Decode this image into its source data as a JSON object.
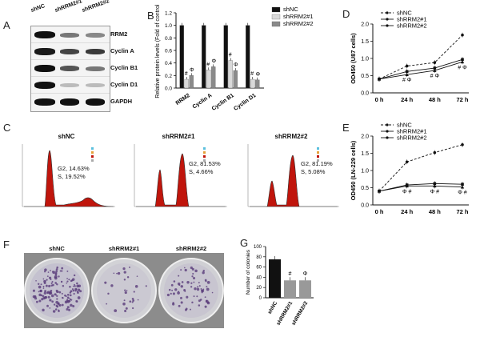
{
  "panels": {
    "a": "A",
    "b": "B",
    "c": "C",
    "d": "D",
    "e": "E",
    "f": "F",
    "g": "G"
  },
  "panel_a": {
    "columns": [
      "shNC",
      "shRRM2#1",
      "shRRM2#2"
    ],
    "rows": [
      "RRM2",
      "Cyclin A",
      "Cyclin B1",
      "Cyclin D1",
      "GAPDH"
    ]
  },
  "panel_c": {
    "titles": [
      "shNC",
      "shRRM2#1",
      "shRRM2#2"
    ],
    "g2_labels": [
      "G2, 14.63%",
      "G2, 81.53%",
      "G2, 81.19%"
    ],
    "s_labels": [
      "S, 19.52%",
      "S, 4.66%",
      "S, 5.08%"
    ]
  },
  "panel_f": {
    "labels": [
      "shNC",
      "shRRM2#1",
      "shRRM2#2"
    ]
  },
  "chart_data": [
    {
      "panel": "B",
      "type": "bar",
      "categories": [
        "RRM2",
        "Cyclin A",
        "Cyclin B1",
        "Cyclin D1"
      ],
      "ylabel": "Relative protein levels (Fold of control)",
      "ylim": [
        0,
        1.2
      ],
      "yticks": [
        0.0,
        0.2,
        0.4,
        0.6,
        0.8,
        1.0,
        1.2
      ],
      "yticklabels": [
        "0.0",
        "0.2",
        "0.4",
        "0.6",
        "0.8",
        "1.0",
        "1.2"
      ],
      "legend": "top-right",
      "series": [
        {
          "name": "shNC",
          "color": "#111111",
          "values": [
            1.0,
            1.0,
            1.0,
            1.0
          ]
        },
        {
          "name": "shRRM2#1",
          "color": "#d9d9d9",
          "values": [
            0.14,
            0.29,
            0.44,
            0.14
          ]
        },
        {
          "name": "shRRM2#2",
          "color": "#8a8a8a",
          "values": [
            0.2,
            0.34,
            0.28,
            0.13
          ]
        }
      ],
      "annotations": [
        "#",
        "Φ",
        "#",
        "Φ",
        "#",
        "Φ",
        "#",
        "Φ"
      ]
    },
    {
      "panel": "D",
      "type": "line",
      "x": [
        "0 h",
        "24 h",
        "48 h",
        "72 h"
      ],
      "ylabel": "OD450 (U87 cells)",
      "ylim": [
        0.0,
        2.0
      ],
      "yticks": [
        0.0,
        0.5,
        1.0,
        1.5,
        2.0
      ],
      "yticklabels": [
        "0.0",
        "0.5",
        "1.0",
        "1.5",
        "2.0"
      ],
      "legend": "top-left",
      "series": [
        {
          "name": "shNC",
          "values": [
            0.4,
            0.78,
            0.88,
            1.68
          ]
        },
        {
          "name": "shRRM2#1",
          "values": [
            0.4,
            0.62,
            0.72,
            0.97
          ]
        },
        {
          "name": "shRRM2#2",
          "values": [
            0.4,
            0.53,
            0.65,
            0.9
          ]
        }
      ],
      "annotations": [
        "# Φ",
        "# Φ",
        "# Φ"
      ]
    },
    {
      "panel": "E",
      "type": "line",
      "x": [
        "0 h",
        "24 h",
        "48 h",
        "72 h"
      ],
      "ylabel": "OD450 (LN-229 cells)",
      "ylim": [
        0.0,
        2.0
      ],
      "yticks": [
        0.0,
        0.5,
        1.0,
        1.5,
        2.0
      ],
      "yticklabels": [
        "0.0",
        "0.5",
        "1.0",
        "1.5",
        "2.0"
      ],
      "legend": "top-left",
      "series": [
        {
          "name": "shNC",
          "values": [
            0.4,
            1.25,
            1.52,
            1.75
          ]
        },
        {
          "name": "shRRM2#1",
          "values": [
            0.4,
            0.58,
            0.62,
            0.6
          ]
        },
        {
          "name": "shRRM2#2",
          "values": [
            0.4,
            0.55,
            0.55,
            0.52
          ]
        }
      ],
      "annotations": [
        "Φ #",
        "Φ #",
        "Φ #"
      ]
    },
    {
      "panel": "G",
      "type": "bar",
      "categories": [
        "shNC",
        "shRRM2#1",
        "shRRM2#2"
      ],
      "ylabel": "Number of colonies",
      "ylim": [
        0,
        100
      ],
      "yticks": [
        0,
        20,
        40,
        60,
        80,
        100
      ],
      "yticklabels": [
        "0",
        "20",
        "40",
        "60",
        "80",
        "100"
      ],
      "series": [
        {
          "colors": [
            "#111111",
            "#999999",
            "#999999"
          ],
          "values": [
            75,
            34,
            34
          ]
        }
      ],
      "annotations": [
        "#",
        "Φ"
      ]
    }
  ]
}
